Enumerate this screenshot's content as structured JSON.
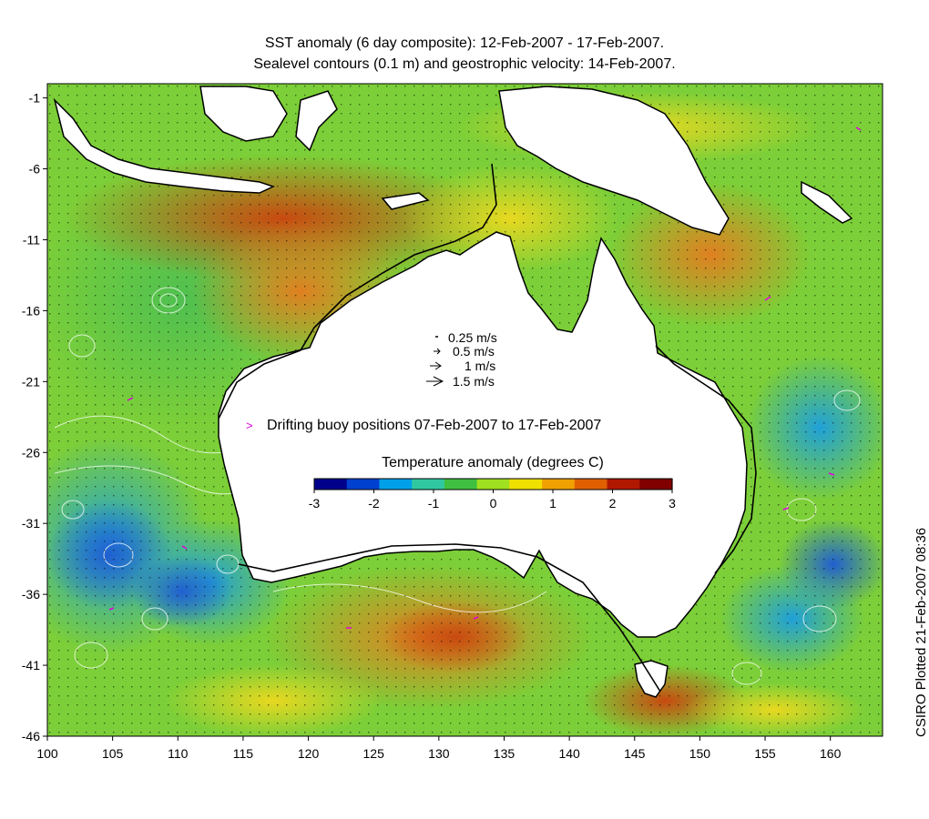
{
  "title": {
    "line1": "SST anomaly (6 day composite): 12-Feb-2007 - 17-Feb-2007.",
    "line2": "Sealevel contours (0.1 m) and geostrophic velocity: 14-Feb-2007."
  },
  "axes": {
    "x": {
      "min": 100,
      "max": 164,
      "ticks": [
        "100",
        "105",
        "110",
        "115",
        "120",
        "125",
        "130",
        "135",
        "140",
        "145",
        "150",
        "155",
        "160"
      ]
    },
    "y": {
      "min": -46,
      "max": 0,
      "ticks": [
        "-1",
        "-6",
        "-11",
        "-16",
        "-21",
        "-26",
        "-31",
        "-36",
        "-41",
        "-46"
      ]
    }
  },
  "velocity_legend": [
    "0.25 m/s",
    "0.5 m/s",
    "1 m/s",
    "1.5 m/s"
  ],
  "buoy_legend": {
    "marker": ">",
    "label": "Drifting buoy positions 07-Feb-2007 to 17-Feb-2007"
  },
  "colorbar": {
    "title": "Temperature anomaly (degrees C)",
    "ticks": [
      "-3",
      "-2",
      "-1",
      "0",
      "1",
      "2",
      "3"
    ],
    "range": [
      -3,
      3
    ],
    "colors": [
      "#00008b",
      "#0040d0",
      "#00a0e8",
      "#30c8a0",
      "#40c040",
      "#a0e020",
      "#f0e000",
      "#f0a000",
      "#e06000",
      "#b01800",
      "#800000"
    ]
  },
  "credit": "CSIRO Plotted 21-Feb-2007 08:36",
  "colors": {
    "land": "#ffffff",
    "coast": "#000000",
    "buoy": "#e000e0",
    "contour": "#ffffff"
  }
}
